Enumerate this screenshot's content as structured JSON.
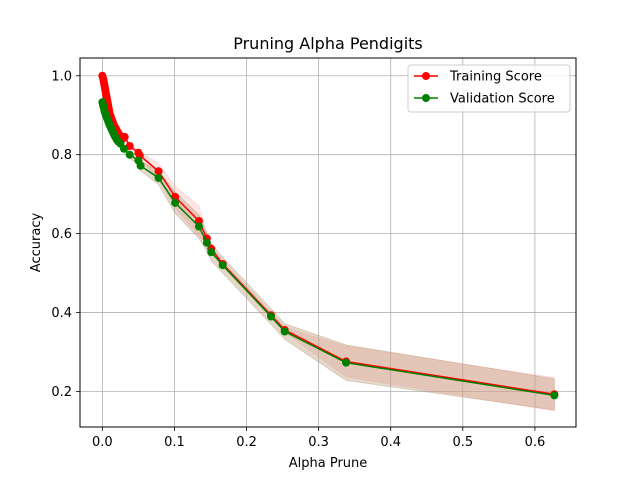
{
  "chart_data": {
    "type": "line",
    "title": "Pruning Alpha Pendigits",
    "xlabel": "Alpha Prune",
    "ylabel": "Accuracy",
    "xlim": [
      -0.031,
      0.657
    ],
    "ylim": [
      0.11,
      1.045
    ],
    "xticks": [
      0.0,
      0.1,
      0.2,
      0.3,
      0.4,
      0.5,
      0.6
    ],
    "xtick_labels": [
      "0.0",
      "0.1",
      "0.2",
      "0.3",
      "0.4",
      "0.5",
      "0.6"
    ],
    "yticks": [
      0.2,
      0.4,
      0.6,
      0.8,
      1.0
    ],
    "ytick_labels": [
      "0.2",
      "0.4",
      "0.6",
      "0.8",
      "1.0"
    ],
    "grid": true,
    "legend_position": "top-right",
    "series": [
      {
        "name": "Training Score",
        "color": "#ff0000",
        "band_color": "#ffb3b3",
        "x": [
          0.0,
          0.0008,
          0.0015,
          0.002,
          0.0025,
          0.003,
          0.0035,
          0.004,
          0.0045,
          0.005,
          0.0055,
          0.006,
          0.0065,
          0.007,
          0.0075,
          0.008,
          0.0085,
          0.009,
          0.0095,
          0.01,
          0.011,
          0.012,
          0.013,
          0.014,
          0.015,
          0.016,
          0.017,
          0.018,
          0.019,
          0.02,
          0.021,
          0.022,
          0.024,
          0.026,
          0.028,
          0.031,
          0.038,
          0.05,
          0.052,
          0.078,
          0.101,
          0.134,
          0.145,
          0.151,
          0.167,
          0.234,
          0.253,
          0.338,
          0.627
        ],
        "y": [
          1.0,
          0.995,
          0.99,
          0.985,
          0.98,
          0.975,
          0.97,
          0.965,
          0.96,
          0.955,
          0.95,
          0.945,
          0.94,
          0.935,
          0.93,
          0.925,
          0.92,
          0.915,
          0.91,
          0.905,
          0.9,
          0.895,
          0.89,
          0.885,
          0.88,
          0.875,
          0.872,
          0.868,
          0.865,
          0.862,
          0.858,
          0.855,
          0.85,
          0.845,
          0.84,
          0.845,
          0.822,
          0.805,
          0.798,
          0.758,
          0.693,
          0.632,
          0.588,
          0.562,
          0.523,
          0.393,
          0.356,
          0.276,
          0.193
        ],
        "upper": [
          1.0,
          0.998,
          0.995,
          0.99,
          0.985,
          0.98,
          0.975,
          0.97,
          0.965,
          0.96,
          0.955,
          0.95,
          0.945,
          0.94,
          0.935,
          0.93,
          0.925,
          0.92,
          0.915,
          0.91,
          0.905,
          0.9,
          0.895,
          0.89,
          0.885,
          0.88,
          0.877,
          0.873,
          0.87,
          0.867,
          0.863,
          0.86,
          0.855,
          0.85,
          0.845,
          0.85,
          0.828,
          0.812,
          0.808,
          0.778,
          0.72,
          0.67,
          0.6,
          0.57,
          0.53,
          0.4,
          0.362,
          0.315,
          0.235
        ],
        "lower": [
          1.0,
          0.992,
          0.985,
          0.98,
          0.975,
          0.97,
          0.965,
          0.96,
          0.955,
          0.95,
          0.945,
          0.94,
          0.935,
          0.93,
          0.925,
          0.92,
          0.915,
          0.91,
          0.905,
          0.9,
          0.895,
          0.89,
          0.885,
          0.88,
          0.875,
          0.87,
          0.867,
          0.863,
          0.86,
          0.857,
          0.853,
          0.85,
          0.845,
          0.84,
          0.835,
          0.84,
          0.816,
          0.798,
          0.788,
          0.738,
          0.666,
          0.594,
          0.576,
          0.554,
          0.516,
          0.386,
          0.35,
          0.237,
          0.151
        ]
      },
      {
        "name": "Validation Score",
        "color": "#008000",
        "band_color": "#b38f6b",
        "x": [
          0.0,
          0.001,
          0.002,
          0.003,
          0.004,
          0.005,
          0.006,
          0.007,
          0.008,
          0.009,
          0.01,
          0.011,
          0.012,
          0.013,
          0.014,
          0.015,
          0.016,
          0.017,
          0.018,
          0.019,
          0.02,
          0.022,
          0.025,
          0.03,
          0.038,
          0.05,
          0.053,
          0.078,
          0.101,
          0.134,
          0.145,
          0.151,
          0.167,
          0.234,
          0.253,
          0.338,
          0.627
        ],
        "y": [
          0.933,
          0.925,
          0.918,
          0.91,
          0.905,
          0.9,
          0.895,
          0.89,
          0.885,
          0.88,
          0.876,
          0.872,
          0.868,
          0.864,
          0.86,
          0.856,
          0.852,
          0.848,
          0.845,
          0.842,
          0.838,
          0.833,
          0.828,
          0.815,
          0.8,
          0.785,
          0.772,
          0.741,
          0.678,
          0.618,
          0.577,
          0.553,
          0.52,
          0.39,
          0.352,
          0.273,
          0.19
        ],
        "upper": [
          0.943,
          0.935,
          0.928,
          0.92,
          0.915,
          0.91,
          0.905,
          0.9,
          0.895,
          0.89,
          0.886,
          0.882,
          0.878,
          0.874,
          0.87,
          0.866,
          0.862,
          0.858,
          0.855,
          0.852,
          0.848,
          0.843,
          0.838,
          0.825,
          0.81,
          0.795,
          0.785,
          0.758,
          0.705,
          0.648,
          0.6,
          0.575,
          0.54,
          0.41,
          0.372,
          0.318,
          0.232
        ],
        "lower": [
          0.923,
          0.915,
          0.908,
          0.9,
          0.895,
          0.89,
          0.885,
          0.88,
          0.875,
          0.87,
          0.866,
          0.862,
          0.858,
          0.854,
          0.85,
          0.846,
          0.842,
          0.838,
          0.835,
          0.832,
          0.828,
          0.823,
          0.818,
          0.805,
          0.79,
          0.775,
          0.759,
          0.724,
          0.651,
          0.588,
          0.554,
          0.531,
          0.5,
          0.37,
          0.332,
          0.228,
          0.153
        ]
      }
    ]
  }
}
